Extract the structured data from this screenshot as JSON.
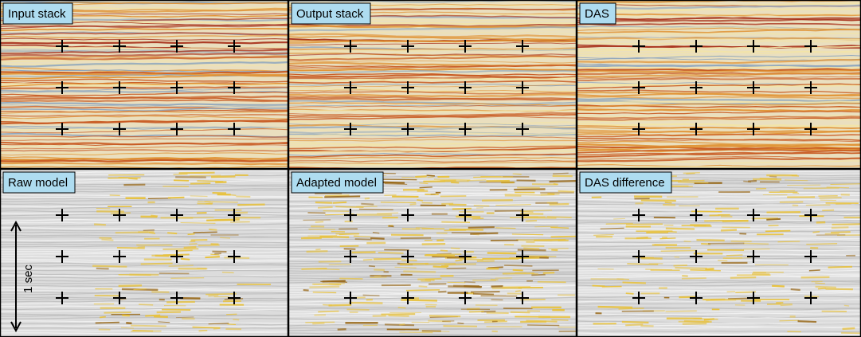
{
  "panels": [
    {
      "label": "Input stack"
    },
    {
      "label": "Output stack"
    },
    {
      "label": "DAS"
    },
    {
      "label": "Raw model"
    },
    {
      "label": "Adapted model"
    },
    {
      "label": "DAS difference"
    }
  ],
  "scale_label": "1 sec"
}
